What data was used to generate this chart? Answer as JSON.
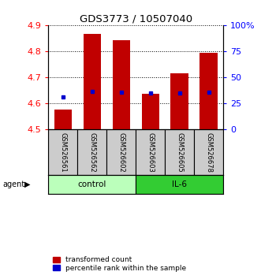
{
  "title": "GDS3773 / 10507040",
  "samples": [
    "GSM526561",
    "GSM526562",
    "GSM526602",
    "GSM526603",
    "GSM526605",
    "GSM526678"
  ],
  "red_values": [
    4.575,
    4.865,
    4.843,
    4.635,
    4.715,
    4.795
  ],
  "blue_values": [
    4.625,
    4.645,
    4.643,
    4.638,
    4.638,
    4.643
  ],
  "ylim_left": [
    4.5,
    4.9
  ],
  "ylim_right": [
    0,
    100
  ],
  "yticks_left": [
    4.5,
    4.6,
    4.7,
    4.8,
    4.9
  ],
  "yticks_right": [
    0,
    25,
    50,
    75,
    100
  ],
  "ytick_labels_right": [
    "0",
    "25",
    "50",
    "75",
    "100%"
  ],
  "bar_color": "#C00000",
  "dot_color": "#0000CC",
  "control_color": "#BBFFBB",
  "il6_color": "#33CC33",
  "label_bg_color": "#CCCCCC",
  "baseline": 4.5,
  "legend_red": "transformed count",
  "legend_blue": "percentile rank within the sample",
  "bar_width": 0.6
}
